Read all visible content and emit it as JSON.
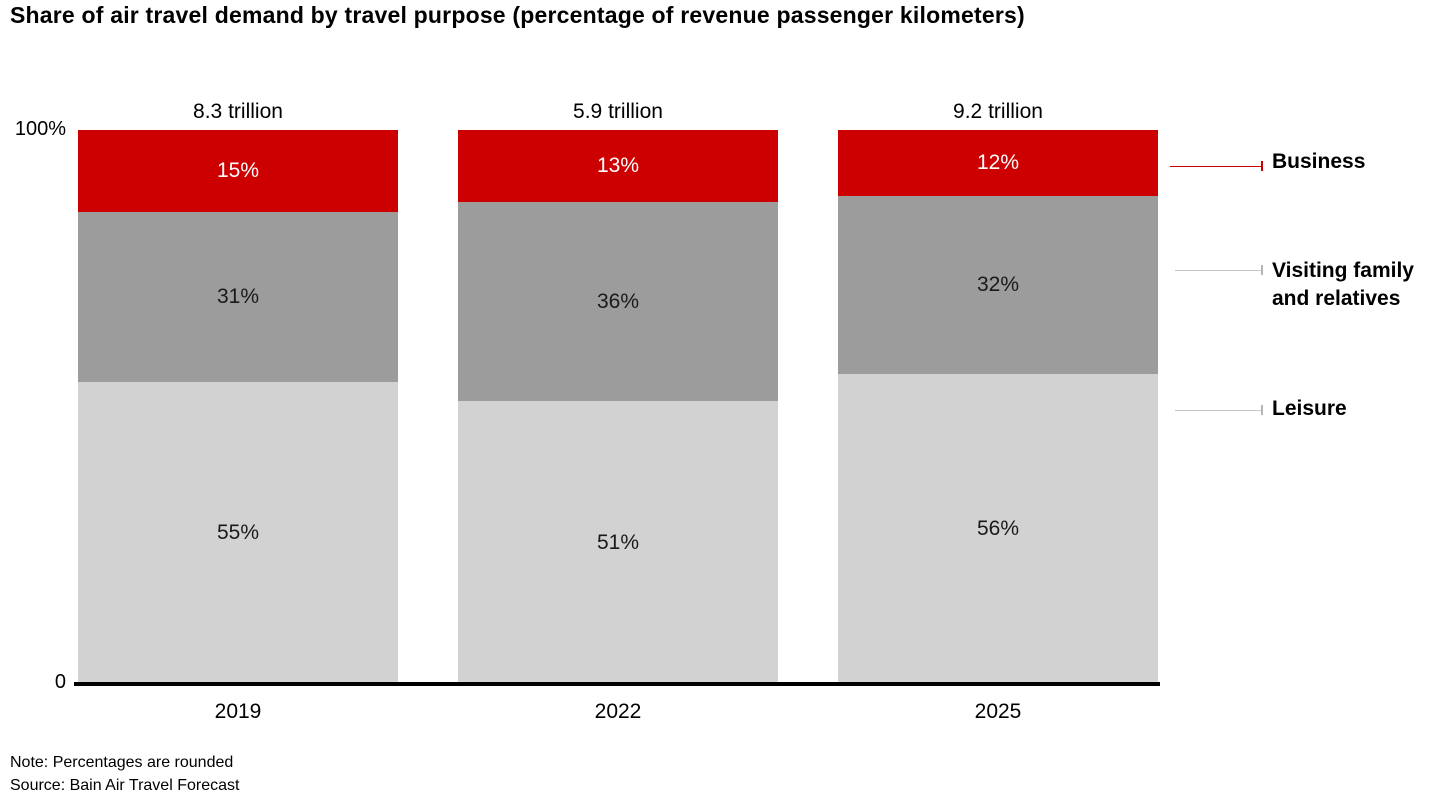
{
  "title": "Share of air travel demand by travel purpose (percentage of revenue passenger kilometers)",
  "y_axis": {
    "top_label": "100%",
    "bottom_label": "0"
  },
  "chart_data": {
    "type": "bar",
    "stacked": true,
    "unit": "%",
    "title": "Share of air travel demand by travel purpose (percentage of revenue passenger kilometers)",
    "categories": [
      "2019",
      "2022",
      "2025"
    ],
    "totals": [
      "8.3 trillion",
      "5.9 trillion",
      "9.2 trillion"
    ],
    "series": [
      {
        "name": "Leisure",
        "color": "#d2d2d2",
        "label_color": "#1a1a1a",
        "values": [
          55,
          51,
          56
        ]
      },
      {
        "name": "Visiting family and relatives",
        "color": "#9c9c9c",
        "label_color": "#1a1a1a",
        "values": [
          31,
          36,
          32
        ]
      },
      {
        "name": "Business",
        "color": "#cc0000",
        "label_color": "#ffffff",
        "values": [
          15,
          13,
          12
        ]
      }
    ],
    "ylim": [
      0,
      100
    ],
    "grid": false,
    "legend_position": "right"
  },
  "legend": {
    "business": {
      "label": "Business",
      "color": "#cc0000"
    },
    "vfr": {
      "line1": "Visiting family",
      "line2": "and relatives",
      "color": "#9c9c9c"
    },
    "leisure": {
      "label": "Leisure",
      "color": "#d2d2d2"
    }
  },
  "notes": {
    "note": "Note: Percentages are rounded",
    "source": "Source: Bain Air Travel Forecast"
  }
}
